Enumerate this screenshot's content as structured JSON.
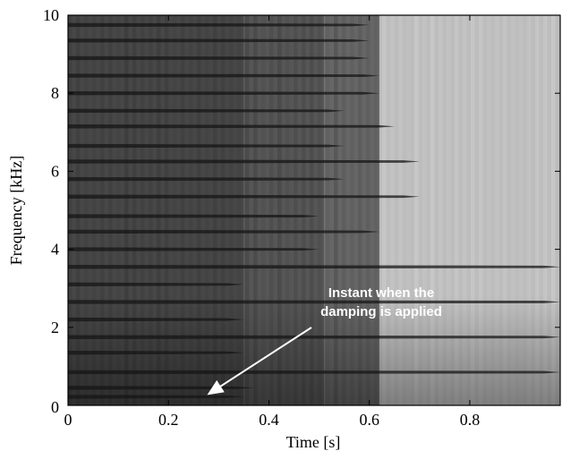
{
  "chart_data": {
    "type": "heatmap",
    "title": "",
    "xlabel": "Time [s]",
    "ylabel": "Frequency [kHz]",
    "xlim": [
      0,
      0.98
    ],
    "ylim": [
      0,
      10
    ],
    "x_ticks": [
      "0",
      "0.2",
      "0.4",
      "0.6",
      "0.8"
    ],
    "x_tick_values": [
      0,
      0.2,
      0.4,
      0.6,
      0.8
    ],
    "y_ticks": [
      "0",
      "2",
      "4",
      "6",
      "8",
      "10"
    ],
    "y_tick_values": [
      0,
      2,
      4,
      6,
      8,
      10
    ],
    "colormap": "grayscale (dark = high energy)",
    "damping_time_s": 0.35,
    "annotation": {
      "line1": "Instant when the",
      "line2": "damping is applied",
      "arrow_to": [
        0.28,
        0.2
      ],
      "color": "#ffffff"
    },
    "harmonics": [
      {
        "f_khz": 0.22,
        "end_s": 0.35
      },
      {
        "f_khz": 0.45,
        "end_s": 0.37
      },
      {
        "f_khz": 0.85,
        "end_s": 0.98
      },
      {
        "f_khz": 1.35,
        "end_s": 0.35
      },
      {
        "f_khz": 1.75,
        "end_s": 0.98
      },
      {
        "f_khz": 2.2,
        "end_s": 0.35
      },
      {
        "f_khz": 2.65,
        "end_s": 0.98
      },
      {
        "f_khz": 3.1,
        "end_s": 0.35
      },
      {
        "f_khz": 3.55,
        "end_s": 0.98
      },
      {
        "f_khz": 4.0,
        "end_s": 0.5
      },
      {
        "f_khz": 4.45,
        "end_s": 0.62
      },
      {
        "f_khz": 4.85,
        "end_s": 0.5
      },
      {
        "f_khz": 5.35,
        "end_s": 0.7
      },
      {
        "f_khz": 5.8,
        "end_s": 0.55
      },
      {
        "f_khz": 6.25,
        "end_s": 0.7
      },
      {
        "f_khz": 6.65,
        "end_s": 0.55
      },
      {
        "f_khz": 7.15,
        "end_s": 0.65
      },
      {
        "f_khz": 7.55,
        "end_s": 0.55
      },
      {
        "f_khz": 8.0,
        "end_s": 0.62
      },
      {
        "f_khz": 8.45,
        "end_s": 0.62
      },
      {
        "f_khz": 8.9,
        "end_s": 0.6
      },
      {
        "f_khz": 9.35,
        "end_s": 0.6
      },
      {
        "f_khz": 9.75,
        "end_s": 0.6
      }
    ],
    "regions": [
      {
        "x_start": 0,
        "x_end": 0.35,
        "gray": "#474747"
      },
      {
        "x_start": 0.35,
        "x_end": 0.51,
        "gray": "#565656"
      },
      {
        "x_start": 0.51,
        "x_end": 0.62,
        "gray": "#666666"
      },
      {
        "x_start": 0.62,
        "x_end": 0.98,
        "gray": "#bdbdbd"
      }
    ]
  }
}
